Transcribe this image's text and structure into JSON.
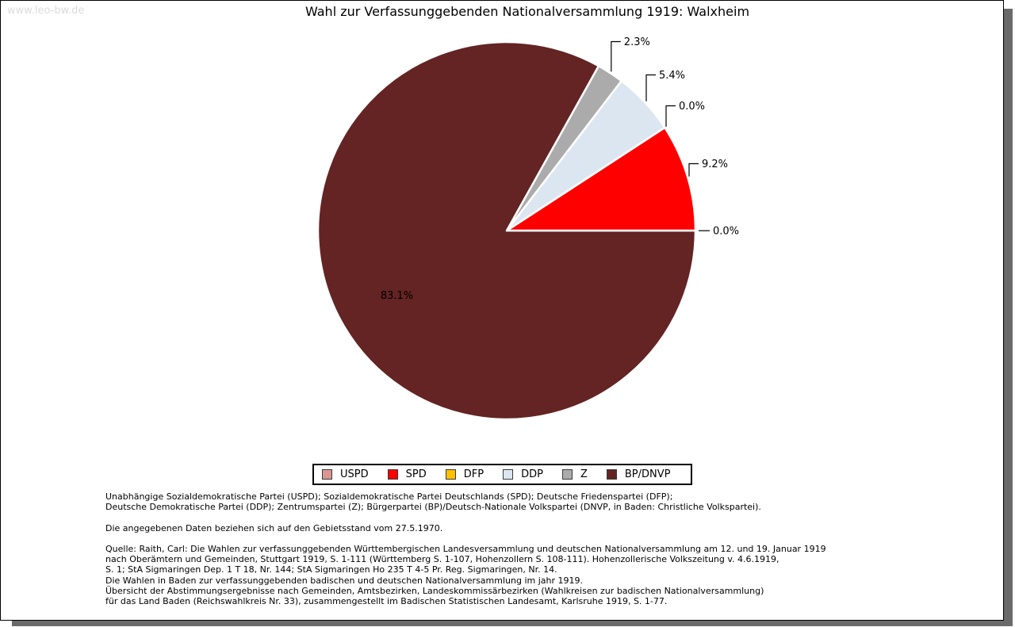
{
  "watermark": "www.leo-bw.de",
  "chart_data": {
    "type": "pie",
    "title": "Wahl zur Verfassunggebenden Nationalversammlung 1919: Walxheim",
    "unit": "percent",
    "start_angle_deg": 0,
    "direction": "counterclockwise",
    "legend_position": "bottom",
    "categories": [
      "USPD",
      "SPD",
      "DFP",
      "DDP",
      "Z",
      "BP/DNVP"
    ],
    "values": [
      0.0,
      9.2,
      0.0,
      5.4,
      2.3,
      83.1
    ],
    "labels": [
      "0.0%",
      "9.2%",
      "0.0%",
      "5.4%",
      "2.3%",
      "83.1%"
    ],
    "colors": [
      "#d99694",
      "#ff0000",
      "#ffc000",
      "#dce6f1",
      "#ababab",
      "#632423"
    ]
  },
  "footnotes": {
    "party_abbreviations": [
      "Unabhängige Sozialdemokratische Partei (USPD); Sozialdemokratische Partei Deutschlands (SPD); Deutsche Friedenspartei (DFP);",
      "Deutsche Demokratische Partei (DDP); Zentrumspartei (Z); Bürgerpartei (BP)/Deutsch-Nationale Volkspartei (DNVP, in Baden: Christliche Volkspartei)."
    ],
    "gebietsstand": [
      "Die angegebenen Daten beziehen sich auf den Gebietsstand vom 27.5.1970."
    ],
    "quelle": [
      "Quelle: Raith, Carl: Die Wahlen zur verfassunggebenden Württembergischen Landesversammlung und deutschen Nationalversammlung am 12. und 19. Januar 1919",
      "nach Oberämtern und Gemeinden, Stuttgart 1919, S. 1-111 (Württemberg S. 1-107, Hohenzollern S. 108-111). Hohenzollerische Volkszeitung v. 4.6.1919,",
      "S. 1; StA Sigmaringen Dep. 1 T 18, Nr. 144; StA Sigmaringen Ho 235 T 4-5 Pr. Reg. Sigmaringen, Nr. 14.",
      "Die Wahlen in Baden zur verfassunggebenden badischen und deutschen Nationalversammlung im jahr 1919.",
      "Übersicht der Abstimmungsergebnisse nach Gemeinden, Amtsbezirken, Landeskommissärbezirken (Wahlkreisen zur badischen Nationalversammlung)",
      "für das Land Baden (Reichswahlkreis Nr. 33), zusammengestellt im Badischen Statistischen Landesamt, Karlsruhe 1919, S. 1-77."
    ]
  }
}
